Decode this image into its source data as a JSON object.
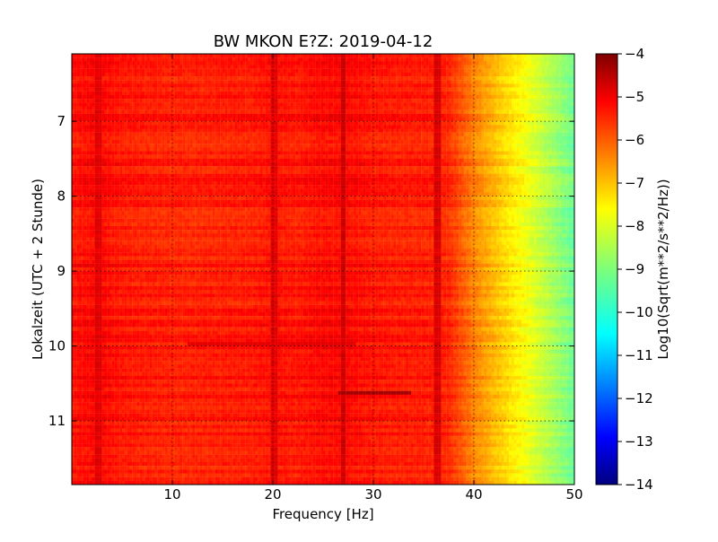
{
  "chart_data": {
    "type": "heatmap",
    "title": "BW MKON E?Z: 2019-04-12",
    "xlabel": "Frequency [Hz]",
    "ylabel": "Lokalzeit (UTC + 2 Stunde)",
    "colorbar_label": "Log10(Sqrt(m**2/s**2/Hz))",
    "x_range": [
      0,
      50
    ],
    "y_range": [
      6.1,
      11.85
    ],
    "y_inverted": true,
    "color_range": [
      -14,
      -4
    ],
    "colormap": "jet",
    "x_ticks": [
      10,
      20,
      30,
      40,
      50
    ],
    "x_tick_labels": [
      "10",
      "20",
      "30",
      "40",
      "50"
    ],
    "y_ticks": [
      7,
      8,
      9,
      10,
      11
    ],
    "y_tick_labels": [
      "7",
      "8",
      "9",
      "10",
      "11"
    ],
    "colorbar_ticks": [
      -4,
      -5,
      -6,
      -7,
      -8,
      -9,
      -10,
      -11,
      -12,
      -13,
      -14
    ],
    "colorbar_tick_labels": [
      "−4",
      "−5",
      "−6",
      "−7",
      "−8",
      "−9",
      "−10",
      "−11",
      "−12",
      "−13",
      "−14"
    ],
    "grid": true,
    "frequency_profile": {
      "x": [
        0,
        2.5,
        5,
        7.5,
        10,
        12.5,
        15,
        17.5,
        20,
        22.5,
        25,
        27.5,
        30,
        32.5,
        35,
        37.5,
        40,
        42.5,
        45,
        47.5,
        50
      ],
      "values": [
        -5.4,
        -5.25,
        -5.45,
        -5.5,
        -5.55,
        -5.55,
        -5.5,
        -5.5,
        -5.4,
        -5.45,
        -5.3,
        -5.3,
        -5.45,
        -5.5,
        -5.5,
        -5.6,
        -6.5,
        -7.2,
        -7.8,
        -8.5,
        -9.2
      ]
    },
    "notable_lines": [
      {
        "x": 2.6,
        "value": -5.0
      },
      {
        "x": 20.2,
        "value": -5.0
      },
      {
        "x": 27.0,
        "value": -4.8
      },
      {
        "x": 36.3,
        "value": -4.9
      }
    ],
    "notable_bursts": [
      {
        "time": 10.6,
        "x_start": 26.5,
        "x_end": 33.5,
        "value": -4.4
      },
      {
        "time": 9.95,
        "x_start": 11.5,
        "x_end": 28.0,
        "value": -5.0
      }
    ]
  }
}
